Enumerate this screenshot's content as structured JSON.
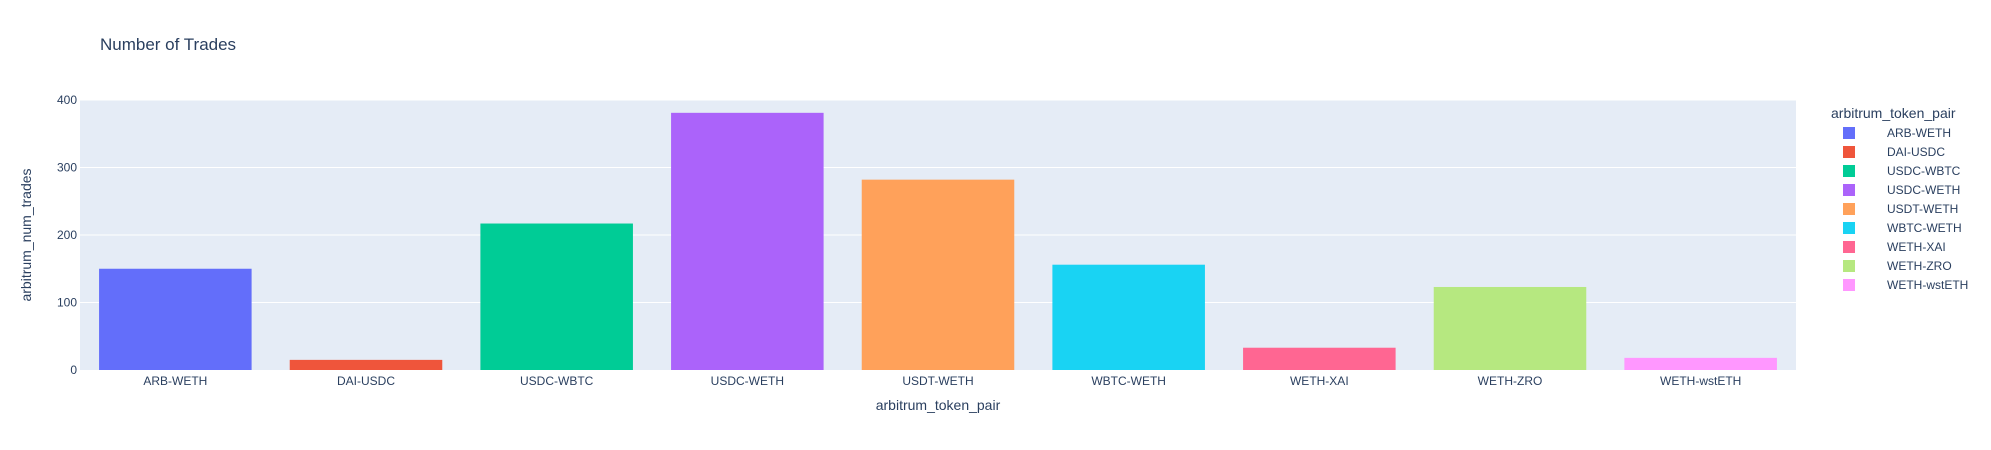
{
  "chart_data": {
    "type": "bar",
    "title": "Number of Trades",
    "xlabel": "arbitrum_token_pair",
    "ylabel": "arbitrum_num_trades",
    "categories": [
      "ARB-WETH",
      "DAI-USDC",
      "USDC-WBTC",
      "USDC-WETH",
      "USDT-WETH",
      "WBTC-WETH",
      "WETH-XAI",
      "WETH-ZRO",
      "WETH-wstETH"
    ],
    "values": [
      150,
      15,
      217,
      381,
      282,
      156,
      33,
      123,
      18
    ],
    "colors": [
      "#636efa",
      "#ef553b",
      "#00cc96",
      "#ab63fa",
      "#ffa15a",
      "#19d3f3",
      "#ff6692",
      "#b6e880",
      "#ff97ff"
    ],
    "ylim": [
      0,
      400
    ],
    "yticks": [
      0,
      100,
      200,
      300,
      400
    ],
    "grid": true,
    "legend": {
      "title": "arbitrum_token_pair",
      "placement": "right"
    }
  }
}
